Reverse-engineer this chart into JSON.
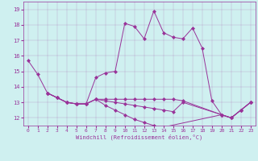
{
  "xlabel": "Windchill (Refroidissement éolien,°C)",
  "background_color": "#cff0f0",
  "line_color": "#993399",
  "xlim": [
    -0.5,
    23.5
  ],
  "ylim": [
    11.5,
    19.5
  ],
  "xticks": [
    0,
    1,
    2,
    3,
    4,
    5,
    6,
    7,
    8,
    9,
    10,
    11,
    12,
    13,
    14,
    15,
    16,
    17,
    18,
    19,
    20,
    21,
    22,
    23
  ],
  "yticks": [
    12,
    13,
    14,
    15,
    16,
    17,
    18,
    19
  ],
  "series": [
    [
      15.7,
      14.8,
      13.6,
      13.3,
      13.0,
      12.9,
      12.9,
      14.6,
      14.9,
      15.0,
      18.1,
      17.9,
      17.1,
      18.9,
      17.5,
      17.2,
      17.1,
      17.8,
      16.5,
      13.1,
      12.2,
      12.0,
      12.5,
      13.0
    ],
    [
      null,
      null,
      13.6,
      13.3,
      13.0,
      12.9,
      12.9,
      13.2,
      13.2,
      13.2,
      13.2,
      13.2,
      13.2,
      13.2,
      13.2,
      13.2,
      13.1,
      null,
      null,
      null,
      12.2,
      12.0,
      12.5,
      13.0
    ],
    [
      null,
      null,
      13.6,
      13.3,
      13.0,
      12.9,
      12.9,
      13.2,
      13.1,
      13.0,
      12.9,
      12.8,
      12.7,
      12.6,
      12.5,
      12.4,
      13.0,
      null,
      null,
      null,
      12.2,
      12.0,
      12.5,
      13.0
    ],
    [
      null,
      null,
      13.6,
      13.3,
      13.0,
      12.9,
      12.9,
      13.2,
      12.8,
      12.5,
      12.2,
      11.9,
      11.7,
      11.5,
      11.4,
      null,
      null,
      null,
      null,
      null,
      12.2,
      12.0,
      12.5,
      13.0
    ]
  ]
}
